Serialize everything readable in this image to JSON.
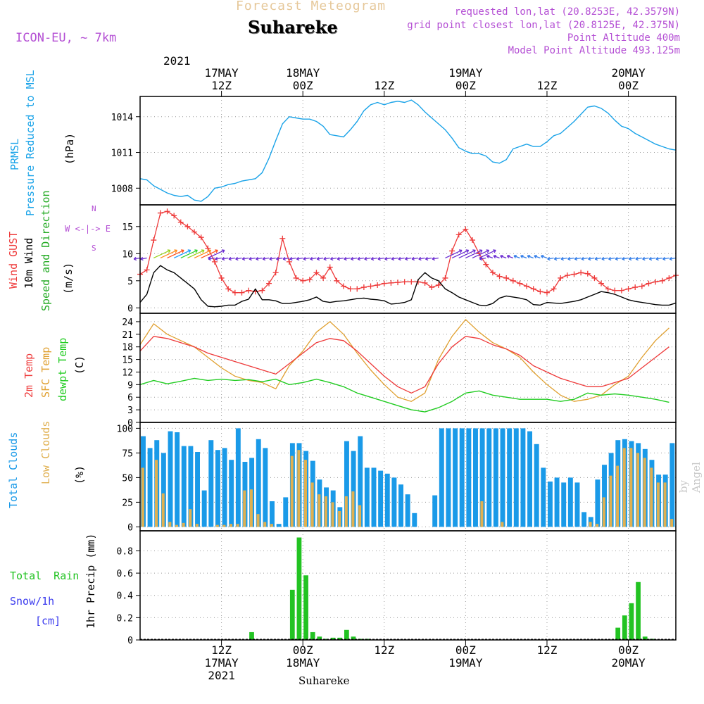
{
  "header": {
    "product_title": "Forecast Meteogram",
    "station": "Suhareke",
    "model": "ICON-EU, ~ 7km",
    "requested_lonlat": "requested lon,lat (20.8253E, 42.3579N)",
    "grid_lonlat": "grid point closest lon,lat (20.8125E, 42.375N)",
    "point_altitude": "Point Altitude 400m",
    "model_altitude": "Model Point Altitude 493.125m",
    "watermark": "by Angel",
    "footer_station": "Suhareke"
  },
  "time_axis": {
    "top_year": "2021",
    "labels": [
      {
        "hour": 12,
        "top": [
          "17MAY",
          "12Z"
        ],
        "bottom": [
          "12Z",
          "17MAY",
          "2021"
        ]
      },
      {
        "hour": 24,
        "top": [
          "18MAY",
          "00Z"
        ],
        "bottom": [
          "00Z",
          "18MAY"
        ]
      },
      {
        "hour": 36,
        "top": [
          "12Z"
        ],
        "bottom": [
          "12Z"
        ]
      },
      {
        "hour": 48,
        "top": [
          "19MAY",
          "00Z"
        ],
        "bottom": [
          "00Z",
          "19MAY"
        ]
      },
      {
        "hour": 60,
        "top": [
          "12Z"
        ],
        "bottom": [
          "12Z"
        ]
      },
      {
        "hour": 72,
        "top": [
          "20MAY",
          "00Z"
        ],
        "bottom": [
          "00Z",
          "20MAY"
        ]
      }
    ]
  },
  "colors": {
    "pressure": "#1aa3e8",
    "gust": "#ee3a3a",
    "wind": "#000000",
    "temp2m": "#ee3a3a",
    "sfc": "#e0a030",
    "dewpt": "#22cc22",
    "total_clouds": "#1a9ae8",
    "low_clouds": "#e0b050",
    "rain": "#22c322",
    "purple": "#b44fd4",
    "title_tan": "#e6c89a",
    "snow": "#3b3bee"
  },
  "chart_data": [
    {
      "id": "pressure",
      "type": "line",
      "xlabel": "",
      "ylabel_lines": [
        "PRMSL",
        "Pressure Reduced to MSL",
        "(hPa)"
      ],
      "yticks": [
        1008,
        1011,
        1014
      ],
      "ylim": [
        1006.6,
        1015.7
      ],
      "x_hours": [
        0,
        1,
        2,
        3,
        4,
        5,
        6,
        7,
        8,
        9,
        10,
        11,
        12,
        13,
        14,
        15,
        16,
        17,
        18,
        19,
        20,
        21,
        22,
        23,
        24,
        25,
        26,
        27,
        28,
        29,
        30,
        31,
        32,
        33,
        34,
        35,
        36,
        37,
        38,
        39,
        40,
        41,
        42,
        43,
        44,
        45,
        46,
        47,
        48,
        49,
        50,
        51,
        52,
        53,
        54,
        55,
        56,
        57,
        58,
        59,
        60,
        61,
        62,
        63,
        64,
        65,
        66,
        67,
        68,
        69,
        70,
        71,
        72,
        73,
        74,
        75,
        76,
        77,
        78,
        79
      ],
      "series": [
        {
          "values": [
            1008.8,
            1008.7,
            1008.2,
            1007.9,
            1007.6,
            1007.4,
            1007.3,
            1007.4,
            1007.0,
            1006.9,
            1007.3,
            1008.0,
            1008.1,
            1008.3,
            1008.4,
            1008.6,
            1008.7,
            1008.8,
            1009.3,
            1010.5,
            1012.0,
            1013.4,
            1014.0,
            1013.9,
            1013.8,
            1013.8,
            1013.6,
            1013.2,
            1012.5,
            1012.4,
            1012.3,
            1012.9,
            1013.6,
            1014.5,
            1015.0,
            1015.2,
            1015.0,
            1015.2,
            1015.3,
            1015.2,
            1015.4,
            1015.0,
            1014.4,
            1013.9,
            1013.4,
            1012.9,
            1012.2,
            1011.4,
            1011.1,
            1010.9,
            1010.9,
            1010.7,
            1010.2,
            1010.1,
            1010.4,
            1011.3,
            1011.5,
            1011.7,
            1011.5,
            1011.5,
            1011.9,
            1012.4,
            1012.6,
            1013.1,
            1013.6,
            1014.2,
            1014.8,
            1014.9,
            1014.7,
            1014.3,
            1013.7,
            1013.2,
            1013.0,
            1012.6,
            1012.3,
            1012.0,
            1011.7,
            1011.5,
            1011.3,
            1011.2
          ]
        }
      ]
    },
    {
      "id": "wind",
      "type": "line",
      "xlabel": "",
      "ylabel_lines": [
        "Wind GUST",
        "10m Wind",
        "Speed and Direction",
        "(m/s)"
      ],
      "compass": [
        "N",
        "W <-|-> E",
        "S"
      ],
      "yticks": [
        0,
        5,
        10,
        15
      ],
      "ylim": [
        -1,
        19
      ],
      "x_hours": [
        0,
        1,
        2,
        3,
        4,
        5,
        6,
        7,
        8,
        9,
        10,
        11,
        12,
        13,
        14,
        15,
        16,
        17,
        18,
        19,
        20,
        21,
        22,
        23,
        24,
        25,
        26,
        27,
        28,
        29,
        30,
        31,
        32,
        33,
        34,
        35,
        36,
        37,
        38,
        39,
        40,
        41,
        42,
        43,
        44,
        45,
        46,
        47,
        48,
        49,
        50,
        51,
        52,
        53,
        54,
        55,
        56,
        57,
        58,
        59,
        60,
        61,
        62,
        63,
        64,
        65,
        66,
        67,
        68,
        69,
        70,
        71,
        72,
        73,
        74,
        75,
        76,
        77,
        78,
        79
      ],
      "series": [
        {
          "name": "Wind GUST",
          "values": [
            6.2,
            7.0,
            12.5,
            17.5,
            17.8,
            17.0,
            15.8,
            15.0,
            14.0,
            13.0,
            11.0,
            8.5,
            5.5,
            3.5,
            2.8,
            2.8,
            3.2,
            3.0,
            3.2,
            4.5,
            6.5,
            12.8,
            8.5,
            5.5,
            5.0,
            5.2,
            6.5,
            5.5,
            7.5,
            5.0,
            4.0,
            3.5,
            3.5,
            3.8,
            4.0,
            4.2,
            4.5,
            4.6,
            4.7,
            4.8,
            4.8,
            4.8,
            4.6,
            3.8,
            4.2,
            5.5,
            10.5,
            13.5,
            14.5,
            12.5,
            10.0,
            8.0,
            6.5,
            5.8,
            5.5,
            5.0,
            4.5,
            4.0,
            3.5,
            3.0,
            2.8,
            3.5,
            5.5,
            6.0,
            6.2,
            6.5,
            6.3,
            5.5,
            4.5,
            3.5,
            3.2,
            3.2,
            3.5,
            3.8,
            4.0,
            4.5,
            4.8,
            5.0,
            5.5,
            6.0
          ]
        },
        {
          "name": "10m Wind",
          "values": [
            1.0,
            2.5,
            6.5,
            7.8,
            7.0,
            6.5,
            5.5,
            4.5,
            3.5,
            1.5,
            0.3,
            0.2,
            0.3,
            0.5,
            0.5,
            1.2,
            1.6,
            3.5,
            1.5,
            1.5,
            1.3,
            0.8,
            0.8,
            1.0,
            1.2,
            1.5,
            2.0,
            1.2,
            1.0,
            1.2,
            1.3,
            1.5,
            1.7,
            1.8,
            1.6,
            1.5,
            1.3,
            0.7,
            0.8,
            1.0,
            1.5,
            5.2,
            6.5,
            5.5,
            5.0,
            3.5,
            2.8,
            2.0,
            1.5,
            1.0,
            0.5,
            0.4,
            0.8,
            1.8,
            2.2,
            2.0,
            1.8,
            1.5,
            0.6,
            0.5,
            1.0,
            0.9,
            0.8,
            1.0,
            1.2,
            1.5,
            2.0,
            2.5,
            3.0,
            2.8,
            2.5,
            2.0,
            1.5,
            1.2,
            1.0,
            0.8,
            0.6,
            0.5,
            0.5,
            0.9
          ]
        }
      ]
    },
    {
      "id": "temperature",
      "type": "line",
      "xlabel": "",
      "ylabel_lines": [
        "2m Temp",
        "SFC Temp",
        "dewpt Temp",
        "(C)"
      ],
      "yticks": [
        0,
        3,
        6,
        9,
        12,
        15,
        18,
        21,
        24
      ],
      "ylim": [
        0,
        26
      ],
      "x_hours": [
        0,
        2,
        4,
        6,
        8,
        10,
        12,
        14,
        16,
        18,
        20,
        22,
        24,
        26,
        28,
        30,
        32,
        34,
        36,
        38,
        40,
        42,
        44,
        46,
        48,
        50,
        52,
        54,
        56,
        58,
        60,
        62,
        64,
        66,
        68,
        70,
        72,
        74,
        76,
        78
      ],
      "series": [
        {
          "name": "2m Temp",
          "values": [
            17.0,
            20.5,
            20.0,
            19.0,
            18.0,
            16.5,
            15.5,
            14.5,
            13.5,
            12.5,
            11.5,
            14.0,
            16.5,
            19.0,
            20.0,
            19.5,
            17.0,
            14.0,
            11.0,
            8.5,
            7.0,
            8.5,
            14.0,
            18.0,
            20.5,
            20.0,
            18.5,
            17.5,
            16.0,
            13.5,
            12.0,
            10.5,
            9.5,
            8.5,
            8.5,
            9.5,
            10.5,
            13.0,
            15.5,
            18.0
          ]
        },
        {
          "name": "SFC Temp",
          "values": [
            18.5,
            23.5,
            21.0,
            19.5,
            18.0,
            15.5,
            13.0,
            11.0,
            10.0,
            9.5,
            8.0,
            13.5,
            17.0,
            21.5,
            24.0,
            21.0,
            16.5,
            12.5,
            9.0,
            6.0,
            5.0,
            7.0,
            15.0,
            20.5,
            24.5,
            21.5,
            19.0,
            17.5,
            15.5,
            12.0,
            9.0,
            6.5,
            5.0,
            5.5,
            6.5,
            9.0,
            11.0,
            15.5,
            19.5,
            22.5
          ]
        },
        {
          "name": "dewpt Temp",
          "values": [
            9.0,
            10.0,
            9.2,
            9.8,
            10.5,
            10.0,
            10.3,
            10.0,
            10.2,
            9.7,
            10.3,
            9.0,
            9.5,
            10.3,
            9.5,
            8.5,
            7.0,
            6.0,
            5.0,
            4.0,
            3.0,
            2.5,
            3.5,
            5.0,
            7.0,
            7.5,
            6.5,
            6.0,
            5.5,
            5.5,
            5.5,
            5.0,
            5.5,
            7.0,
            6.5,
            6.8,
            6.5,
            6.0,
            5.5,
            4.8
          ]
        }
      ]
    },
    {
      "id": "clouds",
      "type": "bar",
      "xlabel": "",
      "ylabel_lines": [
        "Total Clouds",
        "Low Clouds",
        "(%)"
      ],
      "yticks": [
        0,
        25,
        50,
        75,
        100
      ],
      "ylim": [
        -4,
        106
      ],
      "x_hours": [
        0,
        1,
        2,
        3,
        4,
        5,
        6,
        7,
        8,
        9,
        10,
        11,
        12,
        13,
        14,
        15,
        16,
        17,
        18,
        19,
        20,
        21,
        22,
        23,
        24,
        25,
        26,
        27,
        28,
        29,
        30,
        31,
        32,
        33,
        34,
        35,
        36,
        37,
        38,
        39,
        40,
        41,
        42,
        43,
        44,
        45,
        46,
        47,
        48,
        49,
        50,
        51,
        52,
        53,
        54,
        55,
        56,
        57,
        58,
        59,
        60,
        61,
        62,
        63,
        64,
        65,
        66,
        67,
        68,
        69,
        70,
        71,
        72,
        73,
        74,
        75,
        76,
        77,
        78,
        79
      ],
      "series": [
        {
          "name": "Total Clouds",
          "values": [
            92,
            80,
            88,
            75,
            97,
            96,
            82,
            82,
            76,
            37,
            88,
            78,
            80,
            68,
            100,
            66,
            70,
            89,
            80,
            26,
            3,
            30,
            85,
            85,
            77,
            67,
            48,
            40,
            37,
            20,
            87,
            77,
            92,
            60,
            60,
            57,
            54,
            50,
            43,
            33,
            14,
            0,
            0,
            32,
            100,
            100,
            100,
            100,
            100,
            100,
            100,
            100,
            100,
            100,
            100,
            100,
            100,
            97,
            84,
            60,
            46,
            50,
            45,
            50,
            45,
            15,
            10,
            48,
            63,
            75,
            88,
            89,
            87,
            85,
            79,
            68,
            53,
            53,
            85,
            0
          ]
        },
        {
          "name": "Low Clouds",
          "values": [
            60,
            0,
            68,
            34,
            5,
            2,
            4,
            18,
            3,
            0,
            0,
            2,
            2,
            3,
            3,
            37,
            38,
            13,
            5,
            3,
            0,
            0,
            72,
            78,
            68,
            45,
            33,
            31,
            25,
            16,
            31,
            36,
            22,
            0,
            0,
            0,
            0,
            0,
            0,
            0,
            0,
            0,
            0,
            0,
            0,
            0,
            0,
            0,
            0,
            0,
            26,
            0,
            0,
            5,
            0,
            0,
            0,
            0,
            0,
            0,
            0,
            0,
            0,
            0,
            0,
            0,
            5,
            3,
            30,
            52,
            62,
            80,
            80,
            75,
            70,
            60,
            45,
            45,
            8,
            0
          ]
        }
      ]
    },
    {
      "id": "precip",
      "type": "bar",
      "xlabel": "",
      "ylabel_lines": [
        "Total Rain",
        "Snow/1h",
        "[cm]",
        "1hr Precip (mm)"
      ],
      "yticks": [
        0,
        0.2,
        0.4,
        0.6,
        0.8
      ],
      "ylim": [
        0,
        0.98
      ],
      "x_hours": [
        16,
        22,
        23,
        24,
        25,
        26,
        27,
        28,
        29,
        30,
        31,
        32,
        33,
        70,
        71,
        72,
        73,
        74,
        75
      ],
      "series": [
        {
          "name": "Total Rain",
          "values": [
            0.07,
            0.45,
            0.92,
            0.58,
            0.07,
            0.03,
            0.01,
            0.02,
            0.02,
            0.09,
            0.03,
            0.01,
            0.01,
            0.11,
            0.22,
            0.33,
            0.52,
            0.03,
            0.01
          ]
        }
      ]
    }
  ]
}
